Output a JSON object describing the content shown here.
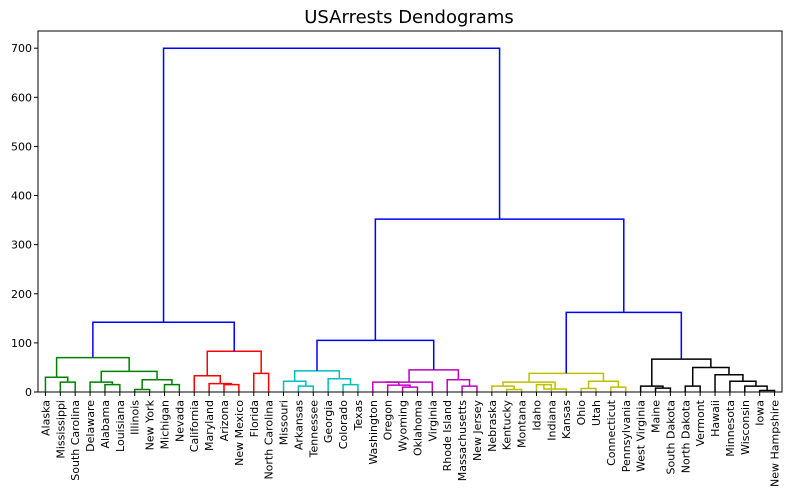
{
  "chart_data": {
    "type": "dendrogram",
    "title": "USArrests Dendograms",
    "xlabel": "",
    "ylabel": "",
    "ylim": [
      0,
      735
    ],
    "yticks": [
      0,
      100,
      200,
      300,
      400,
      500,
      600,
      700
    ],
    "grid": false,
    "leaves": [
      "Alaska",
      "Mississippi",
      "South Carolina",
      "Delaware",
      "Alabama",
      "Louisiana",
      "Illinois",
      "New York",
      "Michigan",
      "Nevada",
      "California",
      "Maryland",
      "Arizona",
      "New Mexico",
      "Florida",
      "North Carolina",
      "Missouri",
      "Arkansas",
      "Tennessee",
      "Georgia",
      "Colorado",
      "Texas",
      "Washington",
      "Oregon",
      "Wyoming",
      "Oklahoma",
      "Virginia",
      "Rhode Island",
      "Massachusetts",
      "New Jersey",
      "Nebraska",
      "Kentucky",
      "Montana",
      "Idaho",
      "Indiana",
      "Kansas",
      "Ohio",
      "Utah",
      "Connecticut",
      "Pennsylvania",
      "West Virginia",
      "Maine",
      "South Dakota",
      "North Dakota",
      "Vermont",
      "Hawaii",
      "Minnesota",
      "Wisconsin",
      "Iowa",
      "New Hampshire"
    ],
    "cluster_colors": {
      "green": "#008000",
      "red": "#ff0000",
      "cyan": "#00bfbf",
      "magenta": "#bf00bf",
      "yellow": "#bfbf00",
      "black": "#000000",
      "link": "#0000ff"
    },
    "merges": [
      {
        "left": "L1",
        "right": "L2",
        "height": 20,
        "color": "green"
      },
      {
        "left": "L0",
        "right": "M0",
        "height": 30,
        "color": "green"
      },
      {
        "left": "L4",
        "right": "L5",
        "height": 15,
        "color": "green"
      },
      {
        "left": "L3",
        "right": "M2",
        "height": 20,
        "color": "green"
      },
      {
        "left": "L6",
        "right": "L7",
        "height": 5,
        "color": "green"
      },
      {
        "left": "L8",
        "right": "L9",
        "height": 15,
        "color": "green"
      },
      {
        "left": "M4",
        "right": "M5",
        "height": 25,
        "color": "green"
      },
      {
        "left": "M3",
        "right": "M6",
        "height": 42,
        "color": "green"
      },
      {
        "left": "M1",
        "right": "M7",
        "height": 70,
        "color": "green"
      },
      {
        "left": "L12",
        "right": "L13",
        "height": 15,
        "color": "red"
      },
      {
        "left": "L11",
        "right": "M9",
        "height": 17,
        "color": "red"
      },
      {
        "left": "L10",
        "right": "M10",
        "height": 33,
        "color": "red"
      },
      {
        "left": "L14",
        "right": "L15",
        "height": 38,
        "color": "red"
      },
      {
        "left": "M11",
        "right": "M12",
        "height": 83,
        "color": "red"
      },
      {
        "left": "M8",
        "right": "M13",
        "height": 142,
        "color": "link"
      },
      {
        "left": "L17",
        "right": "L18",
        "height": 12,
        "color": "cyan"
      },
      {
        "left": "L16",
        "right": "M15",
        "height": 22,
        "color": "cyan"
      },
      {
        "left": "L20",
        "right": "L21",
        "height": 15,
        "color": "cyan"
      },
      {
        "left": "L19",
        "right": "M17",
        "height": 27,
        "color": "cyan"
      },
      {
        "left": "M16",
        "right": "M18",
        "height": 43,
        "color": "cyan"
      },
      {
        "left": "L24",
        "right": "L25",
        "height": 10,
        "color": "magenta"
      },
      {
        "left": "L23",
        "right": "M20",
        "height": 14,
        "color": "magenta"
      },
      {
        "left": "L22",
        "right": "M21",
        "height": 20,
        "color": "magenta"
      },
      {
        "left": "M22",
        "right": "L26",
        "height": 20,
        "color": "magenta"
      },
      {
        "left": "L28",
        "right": "L29",
        "height": 12,
        "color": "magenta"
      },
      {
        "left": "L27",
        "right": "M24",
        "height": 25,
        "color": "magenta"
      },
      {
        "left": "M23",
        "right": "M25",
        "height": 45,
        "color": "magenta"
      },
      {
        "left": "M19",
        "right": "M26",
        "height": 105,
        "color": "link"
      },
      {
        "left": "L31",
        "right": "L32",
        "height": 5,
        "color": "yellow"
      },
      {
        "left": "L30",
        "right": "M28",
        "height": 12,
        "color": "yellow"
      },
      {
        "left": "L33",
        "right": "L34",
        "height": 15,
        "color": "yellow"
      },
      {
        "left": "M30",
        "right": "L35",
        "height": 6,
        "color": "yellow"
      },
      {
        "left": "M29",
        "right": "M31",
        "height": 20,
        "color": "yellow"
      },
      {
        "left": "L36",
        "right": "L37",
        "height": 7,
        "color": "yellow"
      },
      {
        "left": "L38",
        "right": "L39",
        "height": 10,
        "color": "yellow"
      },
      {
        "left": "M33",
        "right": "M34",
        "height": 22,
        "color": "yellow"
      },
      {
        "left": "M32",
        "right": "M35",
        "height": 38,
        "color": "yellow"
      },
      {
        "left": "L41",
        "right": "L42",
        "height": 8,
        "color": "black"
      },
      {
        "left": "L40",
        "right": "M37",
        "height": 12,
        "color": "black"
      },
      {
        "left": "L43",
        "right": "L44",
        "height": 12,
        "color": "black"
      },
      {
        "left": "L48",
        "right": "L49",
        "height": 3,
        "color": "black"
      },
      {
        "left": "L47",
        "right": "M40",
        "height": 12,
        "color": "black"
      },
      {
        "left": "L46",
        "right": "M41",
        "height": 22,
        "color": "black"
      },
      {
        "left": "L45",
        "right": "M42",
        "height": 35,
        "color": "black"
      },
      {
        "left": "M39",
        "right": "M43",
        "height": 50,
        "color": "black"
      },
      {
        "left": "M38",
        "right": "M44",
        "height": 67,
        "color": "black"
      },
      {
        "left": "M36",
        "right": "M45",
        "height": 162,
        "color": "link"
      },
      {
        "left": "M27",
        "right": "M46",
        "height": 352,
        "color": "link"
      },
      {
        "left": "M14",
        "right": "M47",
        "height": 700,
        "color": "link"
      }
    ]
  }
}
